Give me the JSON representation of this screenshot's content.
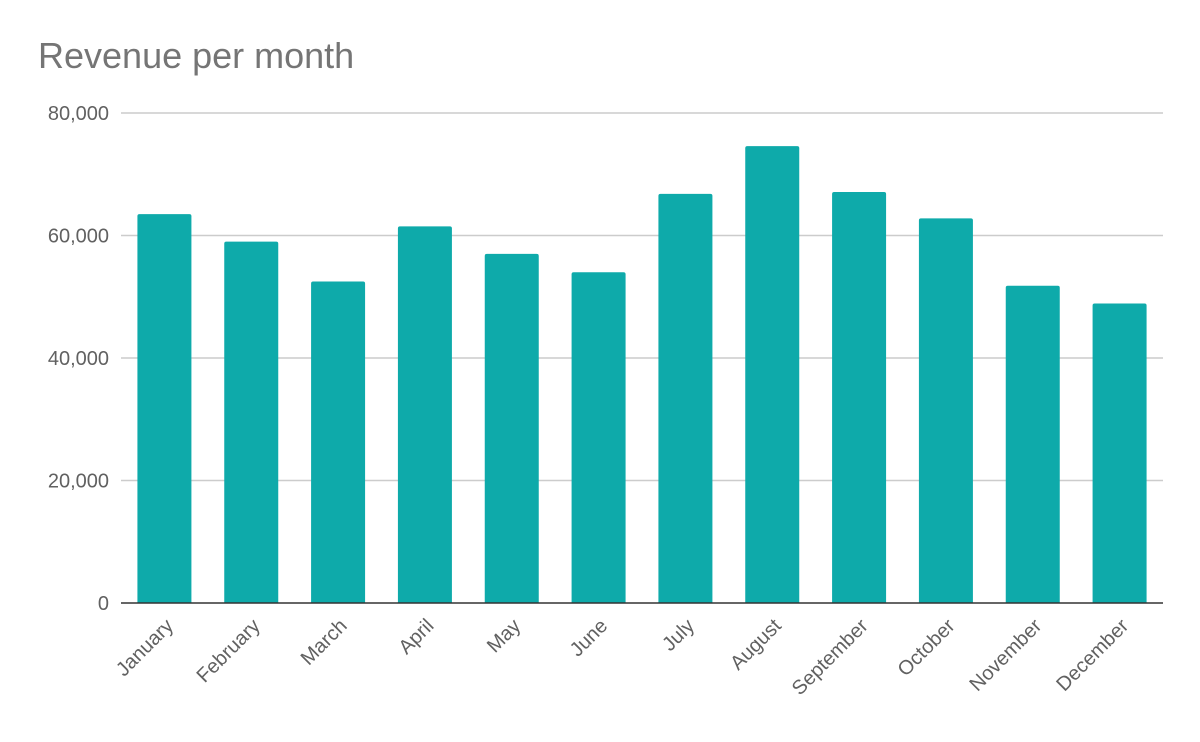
{
  "chart_data": {
    "type": "bar",
    "title": "Revenue per month",
    "xlabel": "",
    "ylabel": "",
    "categories": [
      "January",
      "February",
      "March",
      "April",
      "May",
      "June",
      "July",
      "August",
      "September",
      "October",
      "November",
      "December"
    ],
    "values": [
      63500,
      59000,
      52500,
      61500,
      57000,
      54000,
      66800,
      74600,
      67100,
      62800,
      51800,
      48900
    ],
    "ylim": [
      0,
      80000
    ],
    "yticks": [
      0,
      20000,
      40000,
      60000,
      80000
    ],
    "ytick_labels": [
      "0",
      "20,000",
      "40,000",
      "60,000",
      "80,000"
    ],
    "grid": true,
    "legend": "none",
    "colors": {
      "bar": "#0eaaaa",
      "grid": "#cccccc",
      "axis": "#333333"
    }
  }
}
